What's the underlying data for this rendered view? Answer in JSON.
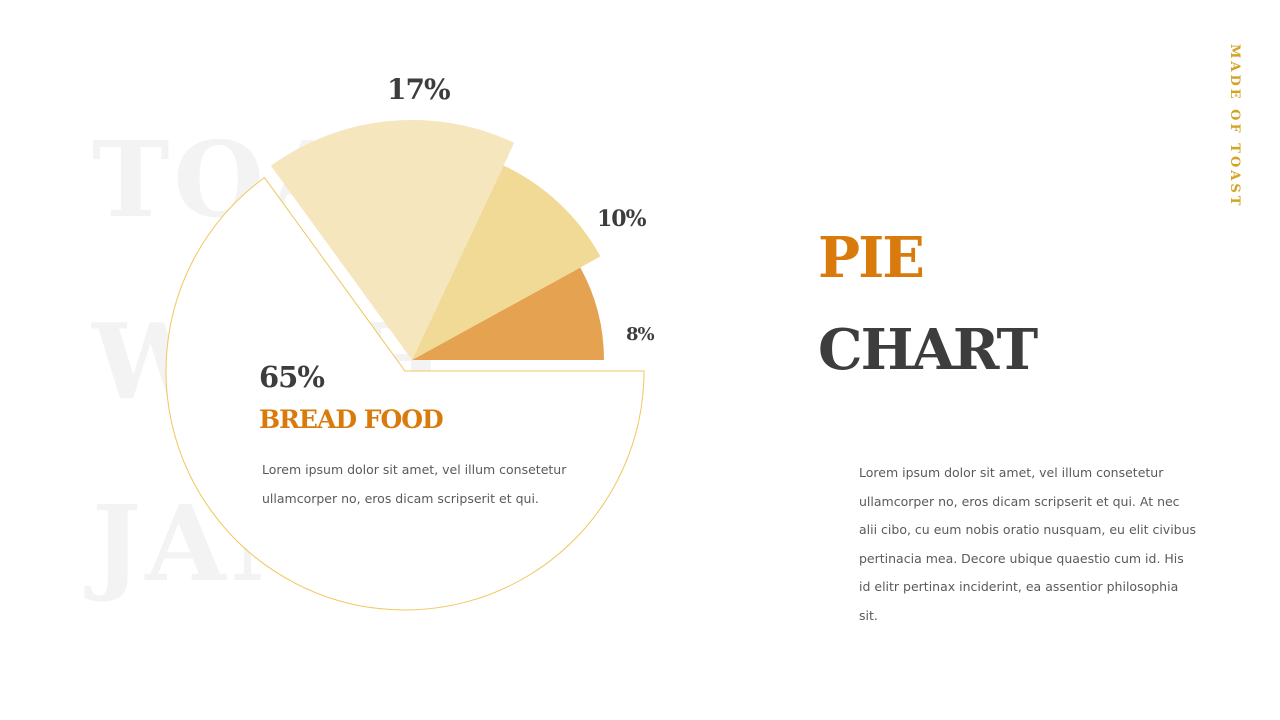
{
  "background_words": [
    "TOAST",
    "WITH",
    "JAM"
  ],
  "side_label": "MADE OF TOAST",
  "title": {
    "line1": "PIE",
    "line2": "CHART"
  },
  "description": "Lorem ipsum dolor sit amet, vel illum consetetur ullamcorper no, eros dicam scripserit et qui. At nec alii cibo, cu eum nobis oratio nusquam, eu elit civibus pertinacia mea. Decore ubique quaestio cum id. His id elitr pertinax inciderint, ea assentior philosophia sit.",
  "highlight": {
    "label": "BREAD FOOD",
    "text": "Lorem ipsum dolor sit amet, vel illum consetetur ullamcorper no, eros dicam scripserit et qui."
  },
  "colors": {
    "accent": "#d97a0c",
    "dark": "#3d3d3d",
    "gold": "#d3a322",
    "outline": "#f0c75e"
  },
  "chart_data": {
    "type": "pie",
    "slices": [
      {
        "label": "65%",
        "value": 65,
        "color": "#ffffff",
        "outline": "#f0c75e"
      },
      {
        "label": "17%",
        "value": 17,
        "color": "#f6e6bd"
      },
      {
        "label": "10%",
        "value": 10,
        "color": "#f1da96"
      },
      {
        "label": "8%",
        "value": 8,
        "color": "#e5a352"
      }
    ]
  }
}
